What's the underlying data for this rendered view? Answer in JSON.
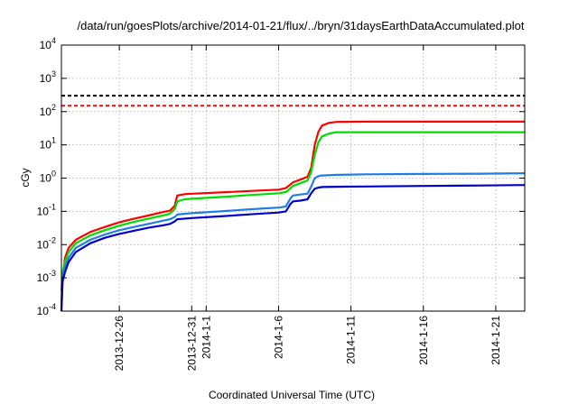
{
  "chart_data": {
    "type": "line",
    "title": "/data/run/goesPlots/archive/2014-01-21/flux/../bryn/31daysEarthDataAccumulated.plot",
    "xlabel": "Coordinated Universal Time (UTC)",
    "ylabel": "cGy",
    "y_scale": "log",
    "ylim": [
      0.0001,
      10000
    ],
    "xlim": [
      "2013-12-22",
      "2014-01-23"
    ],
    "x_ticks": [
      {
        "date": "2013-12-26",
        "label": "2013-12-26"
      },
      {
        "date": "2013-12-31",
        "label": "2013-12-31"
      },
      {
        "date": "2014-01-01",
        "label": "2014-1-1"
      },
      {
        "date": "2014-01-06",
        "label": "2014-1-6"
      },
      {
        "date": "2014-01-11",
        "label": "2014-1-11"
      },
      {
        "date": "2014-01-16",
        "label": "2014-1-16"
      },
      {
        "date": "2014-01-21",
        "label": "2014-1-21"
      }
    ],
    "y_ticks": [
      {
        "value": 0.0001,
        "base": "10",
        "exp": "-4"
      },
      {
        "value": 0.001,
        "base": "10",
        "exp": "-3"
      },
      {
        "value": 0.01,
        "base": "10",
        "exp": "-2"
      },
      {
        "value": 0.1,
        "base": "10",
        "exp": "-1"
      },
      {
        "value": 1,
        "base": "10",
        "exp": "0"
      },
      {
        "value": 10,
        "base": "10",
        "exp": "1"
      },
      {
        "value": 100,
        "base": "10",
        "exp": "2"
      },
      {
        "value": 1000,
        "base": "10",
        "exp": "3"
      },
      {
        "value": 10000,
        "base": "10",
        "exp": "4"
      }
    ],
    "grid": true,
    "thresholds": [
      {
        "value": 300,
        "color": "#000000"
      },
      {
        "value": 150,
        "color": "#ff0000"
      }
    ],
    "series": [
      {
        "color": "#ff0000",
        "points": [
          [
            "2013-12-22",
            0.0001
          ],
          [
            "2013-12-22T02",
            0.001
          ],
          [
            "2013-12-22T06",
            0.004
          ],
          [
            "2013-12-22T12",
            0.008
          ],
          [
            "2013-12-23",
            0.014
          ],
          [
            "2013-12-24",
            0.024
          ],
          [
            "2013-12-25",
            0.034
          ],
          [
            "2013-12-26",
            0.047
          ],
          [
            "2013-12-27",
            0.06
          ],
          [
            "2013-12-28",
            0.075
          ],
          [
            "2013-12-29",
            0.095
          ],
          [
            "2013-12-29T12",
            0.105
          ],
          [
            "2013-12-29T20",
            0.15
          ],
          [
            "2013-12-30",
            0.3
          ],
          [
            "2013-12-30T12",
            0.33
          ],
          [
            "2013-12-31",
            0.34
          ],
          [
            "2014-01-02",
            0.37
          ],
          [
            "2014-01-04",
            0.41
          ],
          [
            "2014-01-06",
            0.45
          ],
          [
            "2014-01-06T12",
            0.5
          ],
          [
            "2014-01-06T20",
            0.65
          ],
          [
            "2014-01-07",
            0.75
          ],
          [
            "2014-01-07T12",
            0.9
          ],
          [
            "2014-01-08",
            1.1
          ],
          [
            "2014-01-08T06",
            2
          ],
          [
            "2014-01-08T12",
            10
          ],
          [
            "2014-01-08T18",
            25
          ],
          [
            "2014-01-09",
            38
          ],
          [
            "2014-01-09T12",
            46
          ],
          [
            "2014-01-10",
            49
          ],
          [
            "2014-01-12",
            50
          ],
          [
            "2014-01-16",
            50
          ],
          [
            "2014-01-20",
            50
          ],
          [
            "2014-01-23",
            50
          ]
        ]
      },
      {
        "color": "#00dd00",
        "points": [
          [
            "2013-12-22",
            0.0004
          ],
          [
            "2013-12-22T02",
            0.0015
          ],
          [
            "2013-12-22T06",
            0.003
          ],
          [
            "2013-12-22T12",
            0.006
          ],
          [
            "2013-12-23",
            0.011
          ],
          [
            "2013-12-24",
            0.019
          ],
          [
            "2013-12-25",
            0.027
          ],
          [
            "2013-12-26",
            0.037
          ],
          [
            "2013-12-27",
            0.048
          ],
          [
            "2013-12-28",
            0.06
          ],
          [
            "2013-12-29",
            0.075
          ],
          [
            "2013-12-29T12",
            0.085
          ],
          [
            "2013-12-29T20",
            0.12
          ],
          [
            "2013-12-30",
            0.2
          ],
          [
            "2013-12-30T12",
            0.23
          ],
          [
            "2013-12-31",
            0.24
          ],
          [
            "2014-01-02",
            0.27
          ],
          [
            "2014-01-04",
            0.31
          ],
          [
            "2014-01-06",
            0.35
          ],
          [
            "2014-01-06T12",
            0.38
          ],
          [
            "2014-01-06T20",
            0.5
          ],
          [
            "2014-01-07",
            0.58
          ],
          [
            "2014-01-07T12",
            0.7
          ],
          [
            "2014-01-08",
            0.85
          ],
          [
            "2014-01-08T06",
            1.5
          ],
          [
            "2014-01-08T12",
            5
          ],
          [
            "2014-01-08T18",
            12
          ],
          [
            "2014-01-09",
            18
          ],
          [
            "2014-01-09T12",
            22
          ],
          [
            "2014-01-10",
            24
          ],
          [
            "2014-01-12",
            24
          ],
          [
            "2014-01-16",
            24
          ],
          [
            "2014-01-20",
            24
          ],
          [
            "2014-01-23",
            24
          ]
        ]
      },
      {
        "color": "#1e7ce6",
        "points": [
          [
            "2013-12-22",
            0.0002
          ],
          [
            "2013-12-22T02",
            0.001
          ],
          [
            "2013-12-22T06",
            0.002
          ],
          [
            "2013-12-22T12",
            0.004
          ],
          [
            "2013-12-23",
            0.008
          ],
          [
            "2013-12-24",
            0.014
          ],
          [
            "2013-12-25",
            0.02
          ],
          [
            "2013-12-26",
            0.027
          ],
          [
            "2013-12-27",
            0.034
          ],
          [
            "2013-12-28",
            0.042
          ],
          [
            "2013-12-29",
            0.052
          ],
          [
            "2013-12-29T12",
            0.058
          ],
          [
            "2013-12-29T20",
            0.068
          ],
          [
            "2013-12-30",
            0.08
          ],
          [
            "2013-12-31",
            0.088
          ],
          [
            "2014-01-02",
            0.1
          ],
          [
            "2014-01-04",
            0.115
          ],
          [
            "2014-01-06",
            0.13
          ],
          [
            "2014-01-06T12",
            0.14
          ],
          [
            "2014-01-06T20",
            0.25
          ],
          [
            "2014-01-07",
            0.3
          ],
          [
            "2014-01-07T12",
            0.32
          ],
          [
            "2014-01-08",
            0.34
          ],
          [
            "2014-01-08T06",
            0.55
          ],
          [
            "2014-01-08T12",
            1.0
          ],
          [
            "2014-01-08T18",
            1.15
          ],
          [
            "2014-01-09",
            1.2
          ],
          [
            "2014-01-10",
            1.25
          ],
          [
            "2014-01-12",
            1.3
          ],
          [
            "2014-01-16",
            1.33
          ],
          [
            "2014-01-20",
            1.36
          ],
          [
            "2014-01-23",
            1.4
          ]
        ]
      },
      {
        "color": "#0000cc",
        "points": [
          [
            "2013-12-22",
            0.0001
          ],
          [
            "2013-12-22T02",
            0.0008
          ],
          [
            "2013-12-22T06",
            0.0015
          ],
          [
            "2013-12-22T12",
            0.003
          ],
          [
            "2013-12-23",
            0.006
          ],
          [
            "2013-12-24",
            0.011
          ],
          [
            "2013-12-25",
            0.016
          ],
          [
            "2013-12-26",
            0.021
          ],
          [
            "2013-12-27",
            0.026
          ],
          [
            "2013-12-28",
            0.032
          ],
          [
            "2013-12-29",
            0.038
          ],
          [
            "2013-12-29T12",
            0.042
          ],
          [
            "2013-12-29T20",
            0.05
          ],
          [
            "2013-12-30",
            0.058
          ],
          [
            "2013-12-31",
            0.063
          ],
          [
            "2014-01-02",
            0.071
          ],
          [
            "2014-01-04",
            0.081
          ],
          [
            "2014-01-06",
            0.092
          ],
          [
            "2014-01-06T12",
            0.1
          ],
          [
            "2014-01-06T20",
            0.17
          ],
          [
            "2014-01-07",
            0.2
          ],
          [
            "2014-01-07T12",
            0.21
          ],
          [
            "2014-01-08",
            0.23
          ],
          [
            "2014-01-08T06",
            0.35
          ],
          [
            "2014-01-08T12",
            0.48
          ],
          [
            "2014-01-08T18",
            0.52
          ],
          [
            "2014-01-09",
            0.54
          ],
          [
            "2014-01-10",
            0.55
          ],
          [
            "2014-01-12",
            0.56
          ],
          [
            "2014-01-16",
            0.58
          ],
          [
            "2014-01-20",
            0.6
          ],
          [
            "2014-01-23",
            0.62
          ]
        ]
      }
    ]
  }
}
